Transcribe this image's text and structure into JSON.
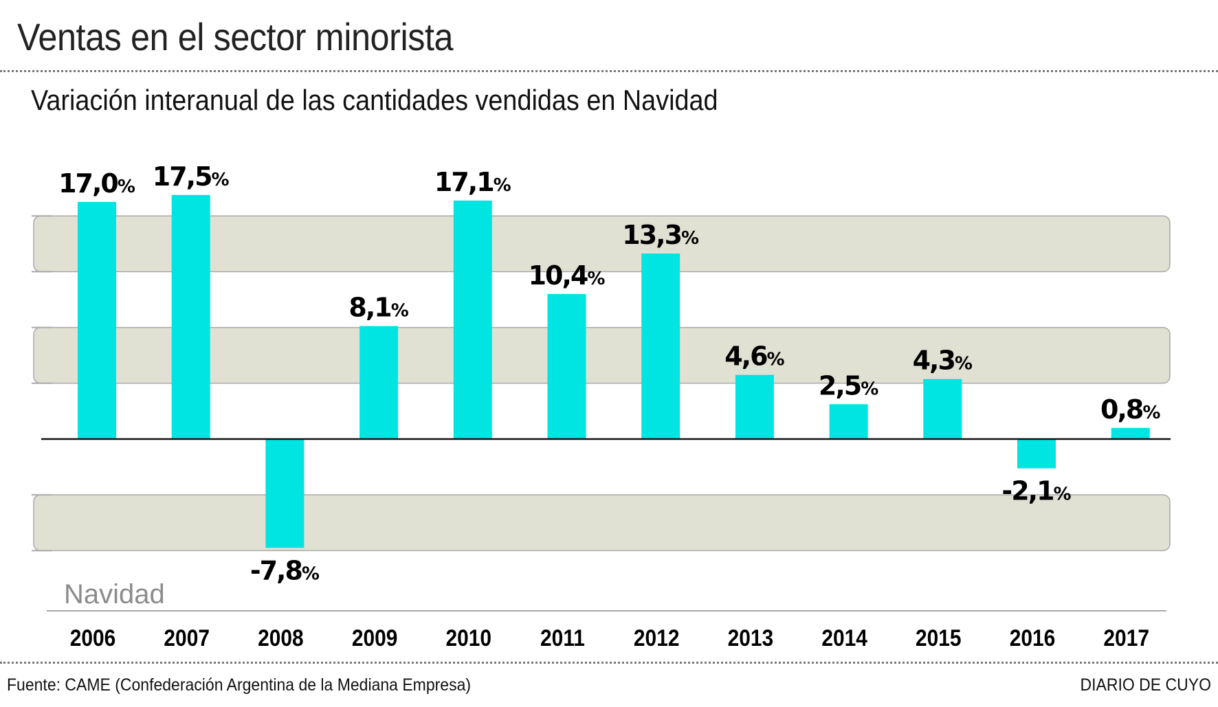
{
  "header": {
    "title": "Ventas en el sector minorista",
    "subtitle": "Variación interanual de las cantidades vendidas en Navidad"
  },
  "footer": {
    "source": "Fuente: CAME (Confederación Argentina de la Mediana Empresa)",
    "brand": "DIARIO DE CUYO"
  },
  "colors": {
    "bar": "#00e5e1",
    "band": "#e1e1d3",
    "band_border": "#a8a8a8",
    "axis": "#111111"
  },
  "chart_data": {
    "type": "bar",
    "title": "Ventas en el sector minorista",
    "subtitle": "Variación interanual de las cantidades vendidas en Navidad",
    "xlabel": "",
    "ylabel": "",
    "series_label": "Navidad",
    "categories": [
      "2006",
      "2007",
      "2008",
      "2009",
      "2010",
      "2011",
      "2012",
      "2013",
      "2014",
      "2015",
      "2016",
      "2017"
    ],
    "values": [
      17.0,
      17.5,
      -7.8,
      8.1,
      17.1,
      10.4,
      13.3,
      4.6,
      2.5,
      4.3,
      -2.1,
      0.8
    ],
    "data_labels": [
      "17,0",
      "17,5",
      "-7,8",
      "8,1",
      "17,1",
      "10,4",
      "13,3",
      "4,6",
      "2,5",
      "4,3",
      "-2,1",
      "0,8"
    ],
    "unit": "%",
    "ylim": [
      -10,
      19
    ],
    "grid_step": 4,
    "shaded_bands": [
      [
        12,
        16
      ],
      [
        4,
        8
      ],
      [
        -8,
        -4
      ]
    ],
    "y_tick_labels_shown": false,
    "legend": "none"
  }
}
